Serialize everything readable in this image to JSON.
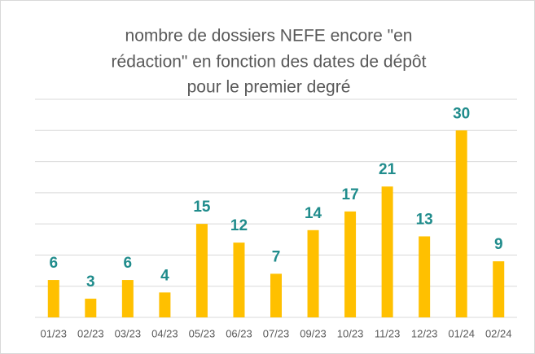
{
  "chart_data": {
    "type": "bar",
    "title": [
      "nombre de dossiers NEFE encore \"en",
      "rédaction\" en fonction des dates de dépôt",
      "pour le premier degré"
    ],
    "categories": [
      "01/23",
      "02/23",
      "03/23",
      "04/23",
      "05/23",
      "06/23",
      "07/23",
      "09/23",
      "10/23",
      "11/23",
      "12/23",
      "01/24",
      "02/24"
    ],
    "values": [
      6,
      3,
      6,
      4,
      15,
      12,
      7,
      14,
      17,
      21,
      13,
      30,
      9
    ],
    "color": "#ffc000",
    "label_color": "#208c8c",
    "ylim": [
      0,
      35
    ],
    "yticks": [
      0,
      5,
      10,
      15,
      20,
      25,
      30,
      35
    ],
    "grid": true
  }
}
